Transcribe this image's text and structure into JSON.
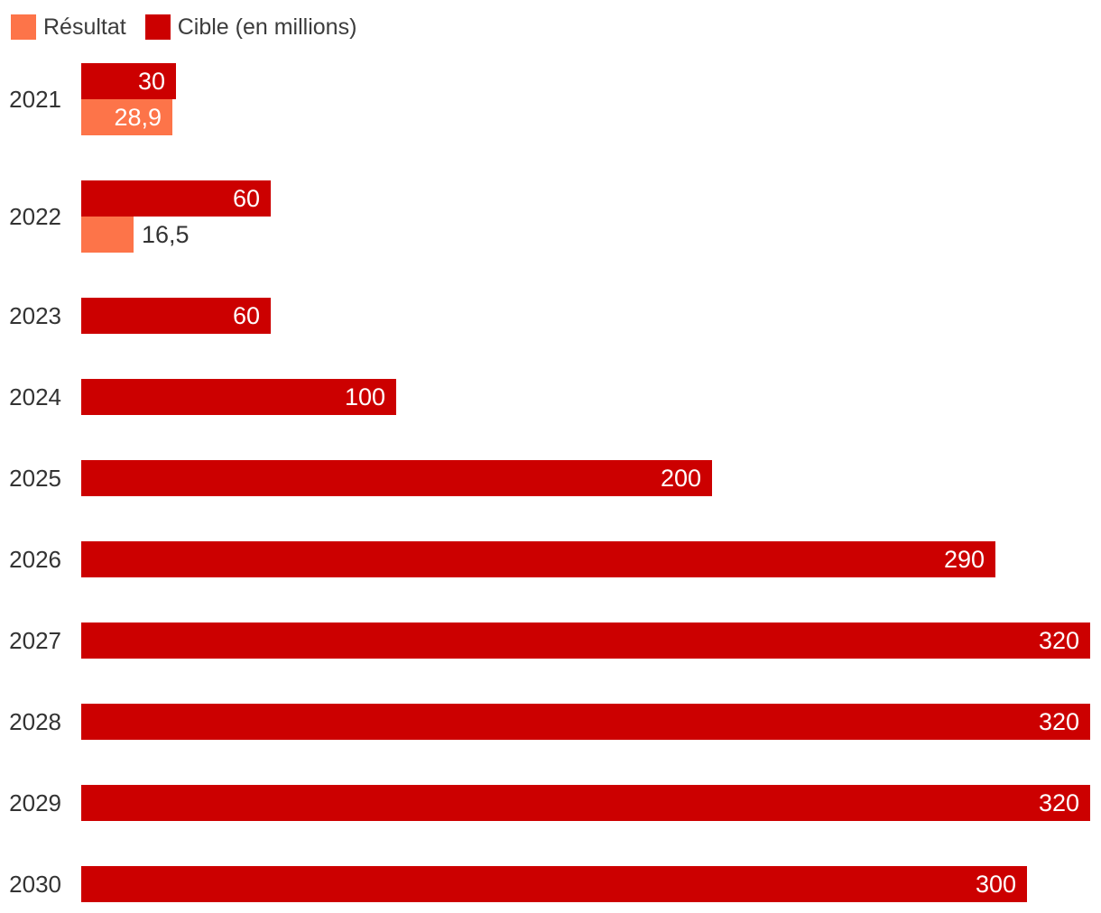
{
  "legend": [
    {
      "label": "Résultat",
      "color": "#fd7449",
      "series_key": "resultat"
    },
    {
      "label": "Cible (en millions)",
      "color": "#cc0000",
      "series_key": "cible"
    }
  ],
  "colors": {
    "cible": "#cc0000",
    "resultat": "#fd7449",
    "axis_text": "#333333",
    "label_inside": "#ffffff",
    "label_outside": "#333333",
    "background": "#ffffff"
  },
  "chart_data": {
    "type": "bar",
    "orientation": "horizontal",
    "title": "",
    "xlabel": "",
    "ylabel": "",
    "xlim": [
      0,
      320
    ],
    "grid": false,
    "legend_position": "top-left",
    "decimal_separator": ",",
    "categories": [
      "2021",
      "2022",
      "2023",
      "2024",
      "2025",
      "2026",
      "2027",
      "2028",
      "2029",
      "2030"
    ],
    "series": [
      {
        "name": "Cible (en millions)",
        "color": "#cc0000",
        "values": [
          30,
          60,
          60,
          100,
          200,
          290,
          320,
          320,
          320,
          300
        ],
        "labels": [
          "30",
          "60",
          "60",
          "100",
          "200",
          "290",
          "320",
          "320",
          "320",
          "300"
        ]
      },
      {
        "name": "Résultat",
        "color": "#fd7449",
        "values": [
          28.9,
          16.5,
          null,
          null,
          null,
          null,
          null,
          null,
          null,
          null
        ],
        "labels": [
          "28,9",
          "16,5",
          null,
          null,
          null,
          null,
          null,
          null,
          null,
          null
        ]
      }
    ]
  }
}
